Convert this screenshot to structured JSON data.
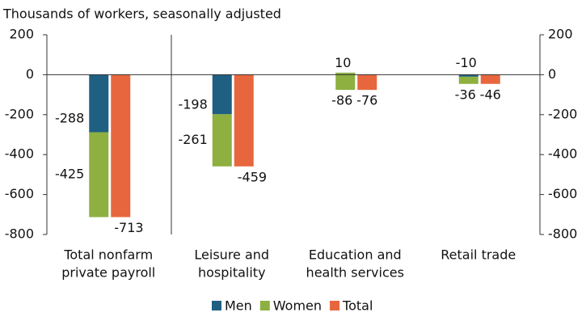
{
  "chart_data": {
    "type": "stacked_bar_with_total",
    "title": "Thousands of workers, seasonally adjusted",
    "categories": [
      [
        "Total nonfarm",
        "private payroll"
      ],
      [
        "Leisure and",
        "hospitality"
      ],
      [
        "Education and",
        "health services"
      ],
      [
        "Retail trade"
      ]
    ],
    "series": [
      {
        "name": "Men",
        "color": "#1f5f82",
        "stack": "a",
        "values": [
          -288,
          -198,
          10,
          -10
        ]
      },
      {
        "name": "Women",
        "color": "#8db040",
        "stack": "a",
        "values": [
          -425,
          -261,
          -86,
          -36
        ]
      },
      {
        "name": "Total",
        "color": "#e8663d",
        "stack": "b",
        "values": [
          -713,
          -459,
          -76,
          -46
        ]
      }
    ],
    "ylim": [
      -800,
      200
    ],
    "yticks": [
      -800,
      -600,
      -400,
      -200,
      0,
      200
    ]
  }
}
